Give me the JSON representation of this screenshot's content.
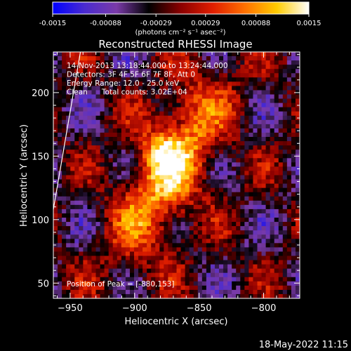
{
  "chart_data": {
    "type": "heatmap",
    "title": "Reconstructed RHESSI Image",
    "xlabel": "Heliocentric X (arcsec)",
    "ylabel": "Heliocentric Y (arcsec)",
    "xlim": [
      -963,
      -772
    ],
    "ylim": [
      38,
      232
    ],
    "xticks": [
      -950,
      -900,
      -850,
      -800
    ],
    "yticks": [
      50,
      100,
      150,
      200
    ],
    "colorbar": {
      "min": -0.0015,
      "max": 0.0015,
      "ticks": [
        "-0.0015",
        "-0.00088",
        "-0.00029",
        "0.00029",
        "0.00088",
        "0.0015"
      ],
      "unit_label": "(photons cm⁻² s⁻¹ asec⁻²)",
      "colors": [
        "#0000ff",
        "#4a2bd0",
        "#7a3aa8",
        "#000000",
        "#8b0000",
        "#e01e00",
        "#ff7000",
        "#ffcc00",
        "#ffffff"
      ]
    },
    "annotations": [
      "14-Nov-2013 13:18:44.000 to 13:24:44.000",
      "Detectors: 3F 4F 5F 6F 7F 8F, Att 0",
      "Energy Range: 12.0 - 25.0 keV",
      "Clean      Total counts: 3.02E+04"
    ],
    "peak_label": "Position of Peak = [-880,153]",
    "peak": [
      -880,
      153
    ],
    "source": {
      "center": [
        -873,
        140
      ],
      "peak_value": 0.0015
    },
    "limb_line": [
      [
        -963,
        108
      ],
      [
        -942,
        232
      ]
    ]
  },
  "footer": {
    "timestamp": "18-May-2022 11:15"
  }
}
